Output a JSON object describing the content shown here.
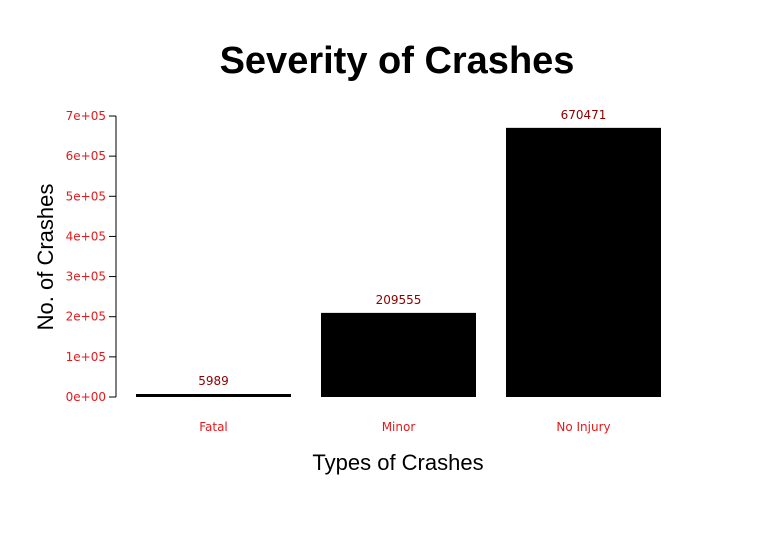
{
  "chart_data": {
    "type": "bar",
    "title": "Severity of Crashes",
    "xlabel": "Types of Crashes",
    "ylabel": "No. of Crashes",
    "categories": [
      "Fatal",
      "Minor",
      "No Injury"
    ],
    "values": [
      5989,
      209555,
      670471
    ],
    "value_labels": [
      "5989",
      "209555",
      "670471"
    ],
    "ylim": [
      0,
      700000
    ],
    "yticks": [
      0,
      100000,
      200000,
      300000,
      400000,
      500000,
      600000,
      700000
    ],
    "ytick_labels": [
      "0e+00",
      "1e+05",
      "2e+05",
      "3e+05",
      "4e+05",
      "5e+05",
      "6e+05",
      "7e+05"
    ],
    "grid": false,
    "legend": "none"
  },
  "colors": {
    "bar": "#000000",
    "tick_label": "#e31a1c",
    "category_label": "#e31a1c",
    "value_label": "#8b0000",
    "axis": "#000000"
  }
}
